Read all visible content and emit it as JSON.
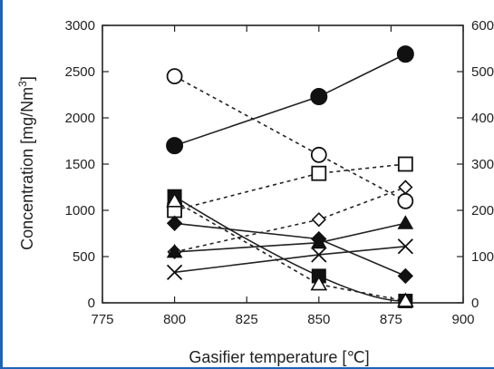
{
  "chart_data": {
    "type": "line",
    "title": "",
    "xlabel": "Gasifier temperature [℃]",
    "ylabel": "Concentration [mg/Nm",
    "ylabel_sup": "3",
    "ylabel_close": "]",
    "xlim": [
      775,
      900
    ],
    "ylim": [
      0,
      3000
    ],
    "y2lim": [
      0,
      600
    ],
    "x_ticks": [
      "775",
      "800",
      "825",
      "850",
      "875",
      "900"
    ],
    "y_ticks": [
      "0",
      "500",
      "1000",
      "1500",
      "2000",
      "2500",
      "3000"
    ],
    "y2_ticks": [
      "0",
      "100",
      "200",
      "300",
      "400",
      "500",
      "600"
    ],
    "grid": false,
    "series": [
      {
        "marker": "filled-circle",
        "line": "solid",
        "x": [
          800,
          850,
          880
        ],
        "y": [
          1700,
          2230,
          2690
        ]
      },
      {
        "marker": "open-circle",
        "line": "dashed",
        "x": [
          800,
          850,
          880
        ],
        "y": [
          2450,
          1600,
          1100
        ]
      },
      {
        "marker": "open-square",
        "line": "dashed",
        "x": [
          800,
          850,
          880
        ],
        "y": [
          1000,
          1400,
          1500
        ]
      },
      {
        "marker": "open-diamond",
        "line": "dashed",
        "x": [
          800,
          850,
          880
        ],
        "y": [
          550,
          900,
          1250
        ]
      },
      {
        "marker": "filled-triangle",
        "line": "solid",
        "x": [
          800,
          850,
          880
        ],
        "y": [
          550,
          650,
          860
        ]
      },
      {
        "marker": "cross",
        "line": "solid",
        "x": [
          800,
          850,
          880
        ],
        "y": [
          330,
          520,
          610
        ]
      },
      {
        "marker": "filled-diamond",
        "line": "solid",
        "x": [
          800,
          850,
          880
        ],
        "y": [
          860,
          690,
          290
        ]
      },
      {
        "marker": "filled-square",
        "line": "solid-curve",
        "x": [
          800,
          850,
          880
        ],
        "y": [
          1150,
          290,
          20
        ]
      },
      {
        "marker": "open-triangle",
        "line": "dashed",
        "x": [
          800,
          850,
          880
        ],
        "y": [
          1100,
          200,
          20
        ]
      }
    ]
  }
}
